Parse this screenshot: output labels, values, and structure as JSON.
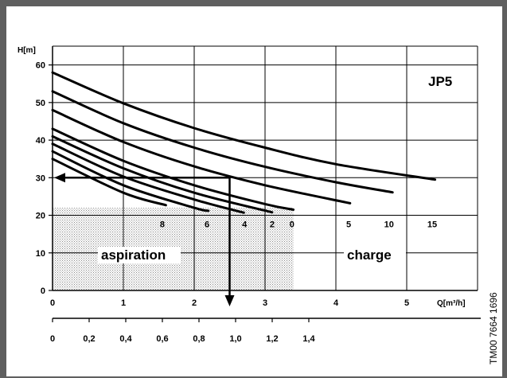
{
  "chart_data": {
    "type": "line",
    "title": "JP5",
    "ylabel": "H[m]",
    "xlabel": "Q[m³/h]",
    "xlim": [
      0,
      6
    ],
    "ylim": [
      0,
      65
    ],
    "y_ticks": [
      "0",
      "10",
      "20",
      "30",
      "40",
      "50",
      "60"
    ],
    "x_ticks": [
      "0",
      "1",
      "2",
      "3",
      "4",
      "5"
    ],
    "secondary_x_ticks": [
      "0",
      "0,2",
      "0,4",
      "0,6",
      "0,8",
      "1,0",
      "1,2",
      "1,4"
    ],
    "grid": true,
    "regions": [
      {
        "name": "aspiration",
        "x_range": [
          0,
          3.4
        ],
        "y_range": [
          0,
          22
        ],
        "pattern": "stippled"
      },
      {
        "name": "charge",
        "x_range": [
          3.4,
          6
        ],
        "y_range": [
          0,
          22
        ],
        "pattern": "none"
      }
    ],
    "curve_labels": [
      "8",
      "6",
      "4",
      "2",
      "0",
      "5",
      "10",
      "15"
    ],
    "series": [
      {
        "name": "15",
        "x": [
          0,
          1,
          2,
          3,
          4,
          5.4
        ],
        "y": [
          58,
          49.8,
          43.2,
          38,
          33.6,
          29.5
        ]
      },
      {
        "name": "10",
        "x": [
          0,
          1,
          2,
          3,
          4,
          4.8
        ],
        "y": [
          53,
          44.5,
          38,
          32.9,
          28.8,
          26.1
        ]
      },
      {
        "name": "5",
        "x": [
          0,
          1,
          2,
          3,
          4.2
        ],
        "y": [
          48,
          39.5,
          33,
          28,
          23.2
        ]
      },
      {
        "name": "0",
        "x": [
          0,
          1,
          2,
          3,
          3.4
        ],
        "y": [
          43,
          34.5,
          28,
          23,
          21.5
        ]
      },
      {
        "name": "2",
        "x": [
          0,
          1,
          2,
          3.1
        ],
        "y": [
          41,
          32.5,
          26,
          20.8
        ]
      },
      {
        "name": "4",
        "x": [
          0,
          1,
          2,
          2.7
        ],
        "y": [
          39,
          30.3,
          24.2,
          20.7
        ]
      },
      {
        "name": "6",
        "x": [
          0,
          1,
          2,
          2.2
        ],
        "y": [
          37,
          28,
          22,
          21.2
        ]
      },
      {
        "name": "8",
        "x": [
          0,
          1,
          1.6
        ],
        "y": [
          35,
          26,
          22.7
        ]
      }
    ],
    "reading_example": {
      "q": 2.5,
      "h": 30
    }
  },
  "side_code": "TM00 7664 1696",
  "colors": {
    "frame": "#5f5f5f",
    "ink": "#000000",
    "stipple": "#b8b8b8"
  }
}
